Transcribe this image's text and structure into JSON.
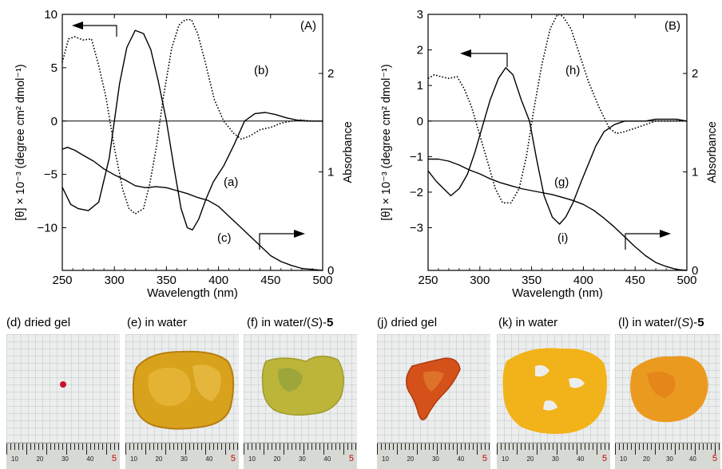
{
  "panel_A": {
    "label": "(A)",
    "y_left_label": "[θ] × 10⁻³ (degree cm² dmol⁻¹)",
    "y_right_label": "Absorbance",
    "x_label": "Wavelength (nm)",
    "x_ticks": [
      "250",
      "300",
      "350",
      "400",
      "450",
      "500"
    ],
    "y_left_ticks": [
      "10",
      "5",
      "0",
      "−5",
      "−10"
    ],
    "y_right_ticks": [
      "2",
      "1",
      "0"
    ],
    "curve_labels": [
      "(a)",
      "(b)",
      "(c)"
    ]
  },
  "panel_B": {
    "label": "(B)",
    "y_left_label": "[θ] × 10⁻³ (degree cm² dmol⁻¹)",
    "y_right_label": "Absorbance",
    "x_label": "Wavelength (nm)",
    "x_ticks": [
      "250",
      "300",
      "350",
      "400",
      "450",
      "500"
    ],
    "y_left_ticks": [
      "3",
      "2",
      "1",
      "0",
      "−1",
      "−2",
      "−3"
    ],
    "y_right_ticks": [
      "2",
      "1",
      "0"
    ],
    "curve_labels": [
      "(g)",
      "(h)",
      "(i)"
    ]
  },
  "photos": [
    {
      "label": "(d)   dried gel",
      "ruler_nums": [
        "10",
        "20",
        "30",
        "40",
        "5"
      ],
      "sample_color": "#c8102e"
    },
    {
      "label": "(e)   in water",
      "ruler_nums": [
        "10",
        "20",
        "30",
        "40",
        "5"
      ],
      "sample_color": "#d9a21c"
    },
    {
      "label_prefix": "(f)   in water/(",
      "label_italic": "S",
      "label_suffix": ")-",
      "label_bold": "5",
      "ruler_nums": [
        "10",
        "20",
        "30",
        "40",
        "5"
      ],
      "sample_color": "#b8b43a"
    },
    {
      "label": "(j)   dried gel",
      "ruler_nums": [
        "10",
        "20",
        "30",
        "40",
        "5"
      ],
      "sample_color": "#d4521a"
    },
    {
      "label": "(k)   in water",
      "ruler_nums": [
        "10",
        "20",
        "30",
        "40",
        "5"
      ],
      "sample_color": "#f2b21a"
    },
    {
      "label_prefix": "(l)   in water/(",
      "label_italic": "S",
      "label_suffix": ")-",
      "label_bold": "5",
      "ruler_nums": [
        "10",
        "20",
        "30",
        "40",
        "5"
      ],
      "sample_color": "#eb9a20"
    }
  ],
  "chart_data": [
    {
      "type": "line",
      "title": "(A)",
      "xlabel": "Wavelength (nm)",
      "ylabel": "[θ] × 10⁻³ (degree cm² dmol⁻¹)",
      "y2label": "Absorbance",
      "xlim": [
        250,
        500
      ],
      "ylim": [
        -14,
        10
      ],
      "y2lim": [
        0,
        2.6
      ],
      "series": [
        {
          "name": "(a)",
          "style": "solid",
          "axis": "left",
          "x": [
            250,
            258,
            265,
            275,
            285,
            295,
            305,
            312,
            320,
            328,
            335,
            342,
            350,
            357,
            364,
            370,
            375,
            381,
            388,
            395,
            405,
            415,
            425,
            435,
            445,
            455,
            465,
            475,
            485,
            495,
            500
          ],
          "y": [
            -6.2,
            -7.8,
            -8.2,
            -8.4,
            -7.6,
            -3.5,
            3.5,
            6.9,
            8.5,
            8.2,
            6.7,
            3.8,
            0,
            -4.2,
            -8.2,
            -10,
            -10.2,
            -9.2,
            -7.3,
            -5.7,
            -4.2,
            -2.2,
            0,
            0.7,
            0.8,
            0.6,
            0.3,
            0.1,
            0,
            0,
            0
          ]
        },
        {
          "name": "(b)",
          "style": "dotted",
          "axis": "left",
          "x": [
            250,
            256,
            262,
            270,
            278,
            285,
            292,
            300,
            308,
            314,
            320,
            328,
            334,
            340,
            347,
            355,
            362,
            368,
            374,
            380,
            388,
            396,
            405,
            415,
            422,
            430,
            440,
            450,
            460,
            470,
            480,
            490,
            500
          ],
          "y": [
            5.5,
            7.7,
            7.9,
            7.6,
            7.7,
            5.2,
            2.2,
            -2.5,
            -6.4,
            -8.2,
            -8.7,
            -8.2,
            -5.9,
            -2.6,
            2.2,
            6.8,
            9,
            9.5,
            9.5,
            8.2,
            5.2,
            2,
            0,
            -1.2,
            -1.7,
            -1.4,
            -0.8,
            -0.6,
            -0.2,
            0,
            0.1,
            0,
            0
          ]
        },
        {
          "name": "(c)",
          "style": "solid",
          "axis": "right",
          "x": [
            250,
            255,
            262,
            270,
            280,
            290,
            300,
            310,
            320,
            330,
            340,
            350,
            360,
            370,
            380,
            390,
            400,
            410,
            420,
            430,
            440,
            450,
            460,
            470,
            480,
            490,
            500
          ],
          "y": [
            1.23,
            1.25,
            1.22,
            1.17,
            1.11,
            1.03,
            0.97,
            0.92,
            0.86,
            0.84,
            0.85,
            0.84,
            0.81,
            0.78,
            0.74,
            0.71,
            0.65,
            0.55,
            0.45,
            0.35,
            0.25,
            0.15,
            0.09,
            0.05,
            0.02,
            0.01,
            0
          ]
        }
      ]
    },
    {
      "type": "line",
      "title": "(B)",
      "xlabel": "Wavelength (nm)",
      "ylabel": "[θ] × 10⁻³ (degree cm² dmol⁻¹)",
      "y2label": "Absorbance",
      "xlim": [
        250,
        500
      ],
      "ylim": [
        -4.2,
        3
      ],
      "y2lim": [
        0,
        2.6
      ],
      "series": [
        {
          "name": "(g)",
          "style": "solid",
          "axis": "left",
          "x": [
            250,
            258,
            265,
            272,
            280,
            288,
            295,
            302,
            310,
            318,
            325,
            332,
            340,
            348,
            355,
            362,
            370,
            377,
            383,
            390,
            398,
            405,
            412,
            420,
            430,
            440,
            450,
            460,
            470,
            480,
            490,
            500
          ],
          "y": [
            -1.4,
            -1.7,
            -1.9,
            -2.1,
            -1.9,
            -1.5,
            -0.9,
            -0.2,
            0.6,
            1.2,
            1.5,
            1.3,
            0.6,
            0,
            -1.1,
            -2.1,
            -2.7,
            -2.9,
            -2.7,
            -2.3,
            -1.7,
            -1.2,
            -0.7,
            -0.3,
            -0.1,
            0,
            0,
            0,
            0.05,
            0.05,
            0.05,
            0
          ]
        },
        {
          "name": "(h)",
          "style": "dotted",
          "axis": "left",
          "x": [
            250,
            256,
            262,
            270,
            278,
            285,
            292,
            300,
            308,
            315,
            322,
            330,
            338,
            345,
            352,
            360,
            368,
            375,
            380,
            388,
            396,
            405,
            415,
            425,
            432,
            440,
            450,
            460,
            470,
            480,
            490,
            500
          ],
          "y": [
            1.2,
            1.3,
            1.25,
            1.2,
            1.25,
            0.9,
            0.4,
            -0.4,
            -1.2,
            -1.9,
            -2.3,
            -2.3,
            -1.9,
            -1,
            0.3,
            1.6,
            2.6,
            3,
            2.95,
            2.6,
            1.9,
            1.1,
            0.4,
            -0.2,
            -0.35,
            -0.3,
            -0.2,
            -0.1,
            0,
            0,
            0,
            0
          ]
        },
        {
          "name": "(i)",
          "style": "solid",
          "axis": "right",
          "x": [
            250,
            260,
            270,
            280,
            290,
            300,
            310,
            320,
            330,
            340,
            350,
            360,
            370,
            380,
            390,
            400,
            410,
            420,
            430,
            440,
            450,
            460,
            470,
            480,
            490,
            500
          ],
          "y": [
            1.13,
            1.13,
            1.11,
            1.07,
            1.02,
            0.98,
            0.93,
            0.89,
            0.86,
            0.83,
            0.81,
            0.79,
            0.77,
            0.74,
            0.71,
            0.67,
            0.61,
            0.53,
            0.44,
            0.34,
            0.24,
            0.15,
            0.08,
            0.04,
            0.01,
            0
          ]
        }
      ]
    }
  ]
}
